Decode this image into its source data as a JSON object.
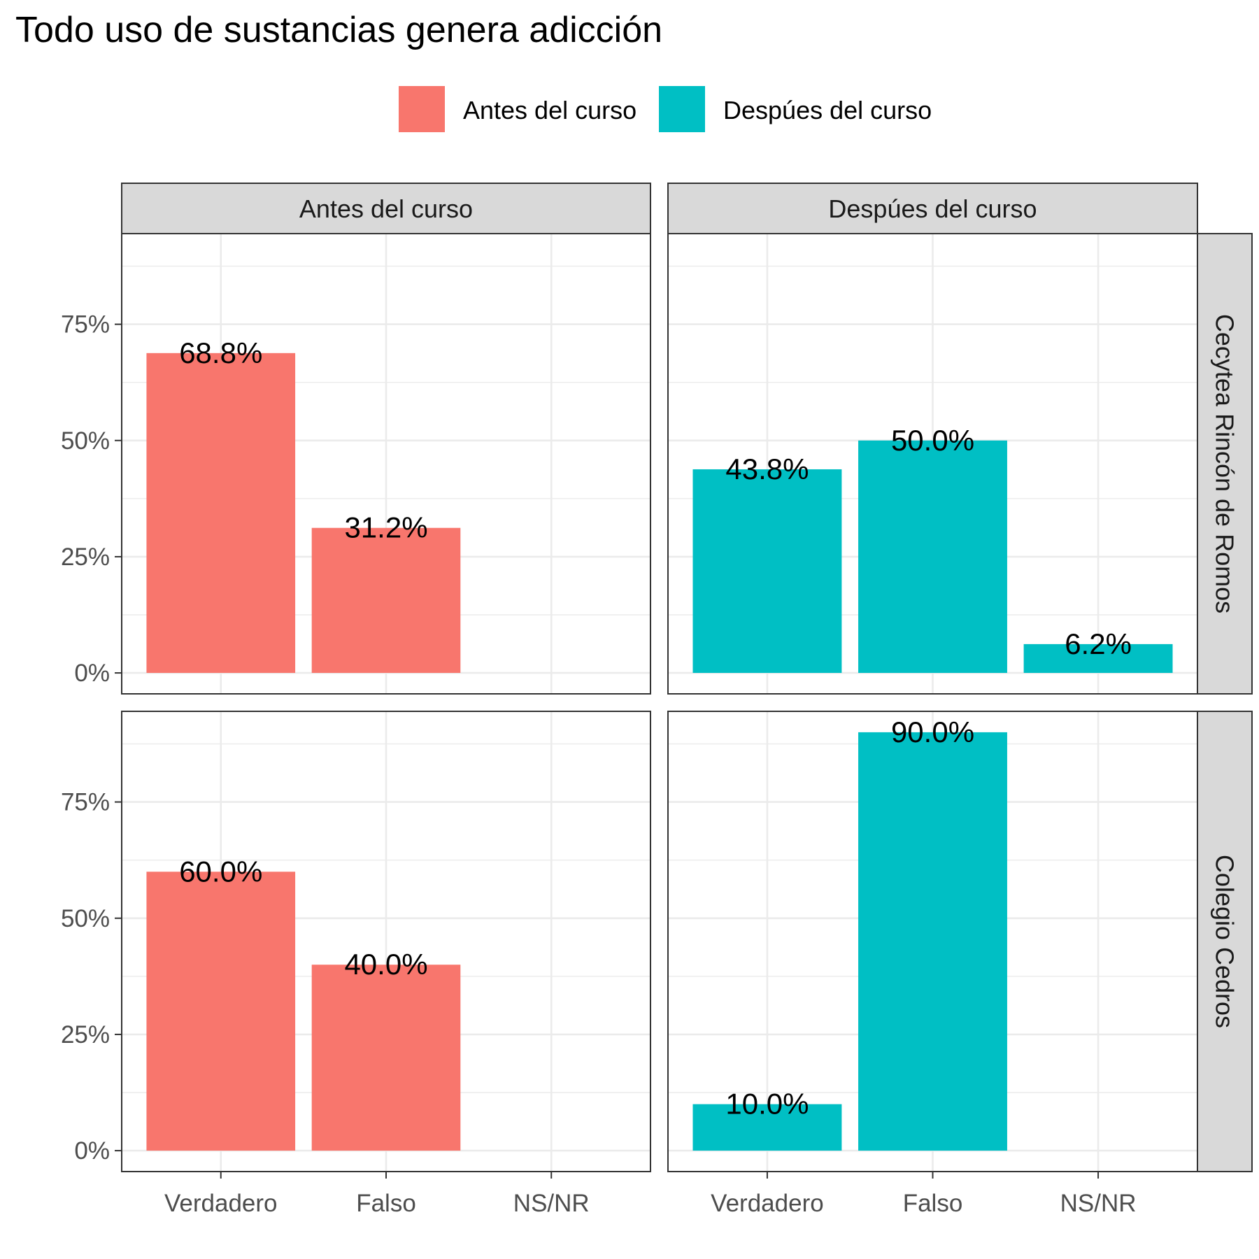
{
  "chart_data": {
    "type": "bar",
    "title": "Todo uso de sustancias genera adicción",
    "categories": [
      "Verdadero",
      "Falso",
      "NS/NR"
    ],
    "legend": {
      "position": "top",
      "entries": [
        {
          "label": "Antes del curso",
          "color": "#F8766D"
        },
        {
          "label": "Despúes del curso",
          "color": "#00BFC4"
        }
      ]
    },
    "columns": [
      {
        "label": "Antes del curso",
        "color": "#F8766D"
      },
      {
        "label": "Despúes del curso",
        "color": "#00BFC4"
      }
    ],
    "rows": [
      {
        "label": "Cecytea Rincón de Romos"
      },
      {
        "label": "Colegio Cedros"
      }
    ],
    "y_ticks": [
      {
        "value": 0,
        "label": "0%"
      },
      {
        "value": 25,
        "label": "25%"
      },
      {
        "value": 50,
        "label": "50%"
      },
      {
        "value": 75,
        "label": "75%"
      }
    ],
    "ylim": [
      -4.5,
      94.5
    ],
    "grid": true,
    "panels": [
      {
        "row": 0,
        "col": 0,
        "values": [
          68.8,
          31.2,
          null
        ],
        "labels": [
          "68.8%",
          "31.2%",
          ""
        ]
      },
      {
        "row": 0,
        "col": 1,
        "values": [
          43.8,
          50.0,
          6.2
        ],
        "labels": [
          "43.8%",
          "50.0%",
          "6.2%"
        ]
      },
      {
        "row": 1,
        "col": 0,
        "values": [
          60.0,
          40.0,
          null
        ],
        "labels": [
          "60.0%",
          "40.0%",
          ""
        ]
      },
      {
        "row": 1,
        "col": 1,
        "values": [
          10.0,
          90.0,
          null
        ],
        "labels": [
          "10.0%",
          "90.0%",
          ""
        ]
      }
    ]
  }
}
